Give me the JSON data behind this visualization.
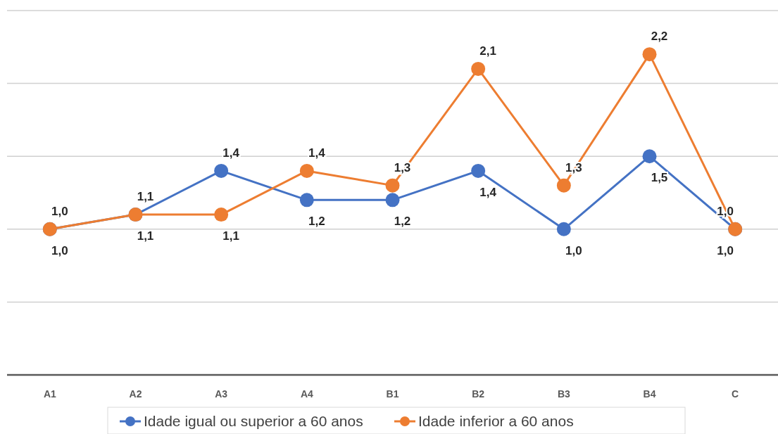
{
  "chart_data": {
    "type": "line",
    "categories": [
      "A1",
      "A2",
      "A3",
      "A4",
      "B1",
      "B2",
      "B3",
      "B4",
      "C"
    ],
    "series": [
      {
        "name": "Idade igual ou superior a 60 anos",
        "color": "#4472c4",
        "values": [
          1.0,
          1.1,
          1.4,
          1.2,
          1.2,
          1.4,
          1.0,
          1.5,
          1.0
        ],
        "value_labels": [
          "1,0",
          "1,1",
          "1,4",
          "1,2",
          "1,2",
          "1,4",
          "1,0",
          "1,5",
          "1,0"
        ]
      },
      {
        "name": "Idade inferior a 60 anos",
        "color": "#ed7d31",
        "values": [
          1.0,
          1.1,
          1.1,
          1.4,
          1.3,
          2.1,
          1.3,
          2.2,
          1.0
        ],
        "value_labels": [
          "1,0",
          "1,1",
          "1,1",
          "1,4",
          "1,3",
          "2,1",
          "1,3",
          "2,2",
          "1,0"
        ]
      }
    ],
    "ylim": [
      0,
      2.5
    ],
    "yticks": [
      {
        "value": 0,
        "label": null
      },
      {
        "value": 0.5,
        "label": null
      },
      {
        "value": 1,
        "label": null
      },
      {
        "value": 1.5,
        "label": null
      },
      {
        "value": 2,
        "label": null
      },
      {
        "value": 2.5,
        "label": null
      }
    ],
    "tick_labels": "x",
    "grid": "y",
    "legend": "bottom",
    "marker": "circle",
    "line_style": "solid"
  }
}
